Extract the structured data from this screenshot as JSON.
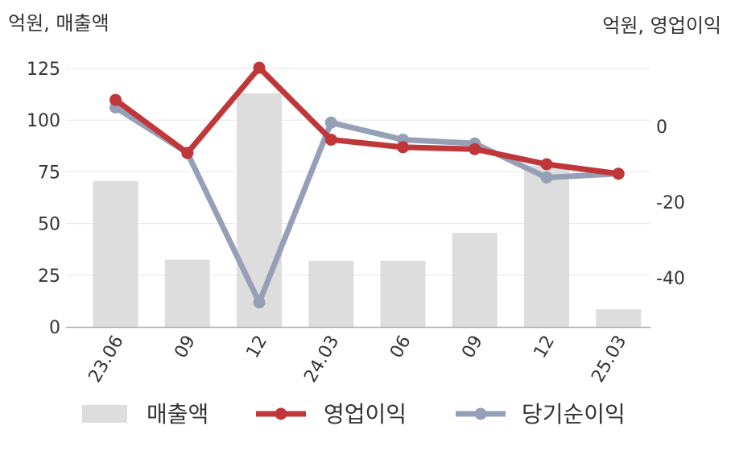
{
  "chart_data": {
    "type": "bar+line",
    "categories": [
      "23.06",
      "09",
      "12",
      "24.03",
      "06",
      "09",
      "12",
      "25.03"
    ],
    "left_axis": {
      "unit_label": "억원, 매출액",
      "ylim": [
        0,
        125
      ],
      "ticks": [
        0,
        25,
        50,
        75,
        100,
        125
      ]
    },
    "right_axis": {
      "unit_label": "억원, 영업이익",
      "ylim": [
        -53,
        16
      ],
      "ticks": [
        0,
        -20,
        -40
      ]
    },
    "series": [
      {
        "name": "매출액",
        "kind": "bar",
        "axis": "left",
        "color": "#dddddd",
        "values": [
          70.5,
          32.5,
          113,
          32,
          32,
          45.5,
          78,
          8.5
        ]
      },
      {
        "name": "영업이익",
        "kind": "line",
        "axis": "right",
        "color": "#c0373a",
        "values": [
          7,
          -7,
          15.5,
          -3.5,
          -5.5,
          -6,
          -10,
          -12.5
        ]
      },
      {
        "name": "당기순이익",
        "kind": "line",
        "axis": "right",
        "color": "#95a0b8",
        "values": [
          5,
          -7,
          -46.5,
          1,
          -3.5,
          -4.5,
          -13.5,
          -12.5
        ]
      }
    ],
    "grid": true,
    "legend_position": "bottom"
  }
}
